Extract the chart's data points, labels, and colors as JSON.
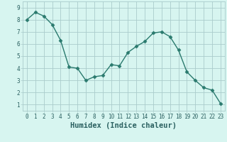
{
  "x": [
    0,
    1,
    2,
    3,
    4,
    5,
    6,
    7,
    8,
    9,
    10,
    11,
    12,
    13,
    14,
    15,
    16,
    17,
    18,
    19,
    20,
    21,
    22,
    23
  ],
  "y": [
    8.0,
    8.6,
    8.3,
    7.6,
    6.3,
    4.1,
    4.0,
    3.0,
    3.3,
    3.4,
    4.3,
    4.2,
    5.3,
    5.8,
    6.2,
    6.9,
    7.0,
    6.6,
    5.5,
    3.7,
    3.0,
    2.4,
    2.2,
    1.1
  ],
  "line_color": "#2a7a6e",
  "marker": "D",
  "marker_size": 2.5,
  "bg_color": "#d7f5f0",
  "grid_color": "#aacccc",
  "xlabel": "Humidex (Indice chaleur)",
  "xlim": [
    -0.5,
    23.5
  ],
  "ylim": [
    0.5,
    9.5
  ],
  "xticks": [
    0,
    1,
    2,
    3,
    4,
    5,
    6,
    7,
    8,
    9,
    10,
    11,
    12,
    13,
    14,
    15,
    16,
    17,
    18,
    19,
    20,
    21,
    22,
    23
  ],
  "yticks": [
    1,
    2,
    3,
    4,
    5,
    6,
    7,
    8,
    9
  ],
  "tick_label_color": "#2a6060",
  "xlabel_color": "#2a6060",
  "tick_fontsize": 5.5,
  "xlabel_fontsize": 7.5
}
